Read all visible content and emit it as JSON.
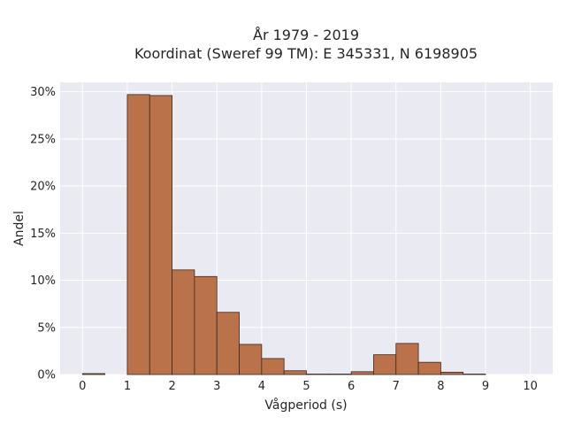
{
  "chart_data": {
    "type": "bar",
    "title": "År 1979 - 2019",
    "subtitle": "Koordinat (Sweref 99 TM): E 345331, N 6198905",
    "xlabel": "Vågperiod (s)",
    "ylabel": "Andel",
    "bin_width": 0.5,
    "bins": [
      {
        "start": 0.0,
        "value": 0.1
      },
      {
        "start": 0.5,
        "value": 0.0
      },
      {
        "start": 1.0,
        "value": 29.7
      },
      {
        "start": 1.5,
        "value": 29.6
      },
      {
        "start": 2.0,
        "value": 11.1
      },
      {
        "start": 2.5,
        "value": 10.4
      },
      {
        "start": 3.0,
        "value": 6.6
      },
      {
        "start": 3.5,
        "value": 3.2
      },
      {
        "start": 4.0,
        "value": 1.7
      },
      {
        "start": 4.5,
        "value": 0.4
      },
      {
        "start": 5.0,
        "value": 0.05
      },
      {
        "start": 5.5,
        "value": 0.05
      },
      {
        "start": 6.0,
        "value": 0.3
      },
      {
        "start": 6.5,
        "value": 2.1
      },
      {
        "start": 7.0,
        "value": 3.3
      },
      {
        "start": 7.5,
        "value": 1.3
      },
      {
        "start": 8.0,
        "value": 0.25
      },
      {
        "start": 8.5,
        "value": 0.05
      }
    ],
    "xlim": [
      -0.5,
      10.5
    ],
    "ylim": [
      0,
      31
    ],
    "xticks": [
      0,
      1,
      2,
      3,
      4,
      5,
      6,
      7,
      8,
      9,
      10
    ],
    "xtick_labels": [
      "0",
      "1",
      "2",
      "3",
      "4",
      "5",
      "6",
      "7",
      "8",
      "9",
      "10"
    ],
    "yticks": [
      0,
      5,
      10,
      15,
      20,
      25,
      30
    ],
    "ytick_labels": [
      "0%",
      "5%",
      "10%",
      "15%",
      "20%",
      "25%",
      "30%"
    ],
    "grid": true,
    "legend": "none",
    "colors": {
      "bar_fill": "#b9724a",
      "bar_stroke": "#3a2a20",
      "plot_bg": "#eaeaf2",
      "grid": "#ffffff",
      "text": "#262626"
    }
  }
}
